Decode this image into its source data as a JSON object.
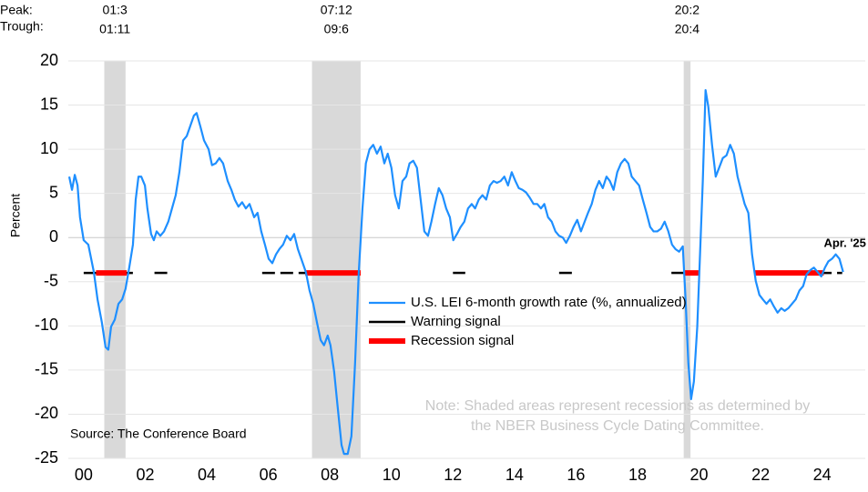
{
  "chart_data": {
    "type": "line",
    "y_label": "Percent",
    "peak_label": "Peak:",
    "trough_label": "Trough:",
    "x": [
      2000.03,
      2000.12,
      2000.21,
      2000.3,
      2000.38,
      2000.5,
      2000.65,
      2000.83,
      2000.95,
      2001.09,
      2001.21,
      2001.3,
      2001.39,
      2001.51,
      2001.63,
      2001.75,
      2001.86,
      2001.98,
      2002.1,
      2002.19,
      2002.28,
      2002.37,
      2002.49,
      2002.57,
      2002.69,
      2002.78,
      2002.87,
      2002.99,
      2003.11,
      2003.25,
      2003.37,
      2003.49,
      2003.61,
      2003.73,
      2003.85,
      2003.96,
      2004.08,
      2004.17,
      2004.29,
      2004.41,
      2004.56,
      2004.67,
      2004.79,
      2004.91,
      2005.03,
      2005.18,
      2005.3,
      2005.41,
      2005.53,
      2005.65,
      2005.77,
      2005.89,
      2006.04,
      2006.15,
      2006.27,
      2006.39,
      2006.51,
      2006.63,
      2006.75,
      2006.86,
      2006.98,
      2007.1,
      2007.22,
      2007.34,
      2007.46,
      2007.57,
      2007.72,
      2007.84,
      2007.96,
      2008.08,
      2008.2,
      2008.31,
      2008.43,
      2008.52,
      2008.64,
      2008.76,
      2008.88,
      2008.96,
      2009.08,
      2009.2,
      2009.32,
      2009.44,
      2009.56,
      2009.67,
      2009.79,
      2009.91,
      2010.03,
      2010.15,
      2010.27,
      2010.38,
      2010.5,
      2010.62,
      2010.74,
      2010.86,
      2010.98,
      2011.09,
      2011.21,
      2011.33,
      2011.45,
      2011.57,
      2011.69,
      2011.8,
      2011.92,
      2012.04,
      2012.16,
      2012.28,
      2012.4,
      2012.51,
      2012.63,
      2012.75,
      2012.87,
      2012.99,
      2013.11,
      2013.22,
      2013.34,
      2013.46,
      2013.58,
      2013.7,
      2013.82,
      2013.93,
      2014.05,
      2014.17,
      2014.29,
      2014.41,
      2014.53,
      2014.64,
      2014.76,
      2014.88,
      2015.0,
      2015.12,
      2015.24,
      2015.36,
      2015.47,
      2015.59,
      2015.71,
      2015.83,
      2015.95,
      2016.07,
      2016.18,
      2016.3,
      2016.42,
      2016.54,
      2016.66,
      2016.78,
      2016.89,
      2017.01,
      2017.13,
      2017.25,
      2017.37,
      2017.49,
      2017.6,
      2017.72,
      2017.84,
      2017.96,
      2018.08,
      2018.2,
      2018.31,
      2018.43,
      2018.55,
      2018.67,
      2018.79,
      2018.91,
      2019.02,
      2019.14,
      2019.26,
      2019.38,
      2019.5,
      2019.62,
      2019.73,
      2019.85,
      2019.97,
      2020.06,
      2020.15,
      2020.24,
      2020.33,
      2020.44,
      2020.53,
      2020.62,
      2020.71,
      2020.8,
      2020.92,
      2021.04,
      2021.15,
      2021.27,
      2021.39,
      2021.51,
      2021.63,
      2021.75,
      2021.86,
      2021.98,
      2022.1,
      2022.22,
      2022.34,
      2022.46,
      2022.57,
      2022.69,
      2022.81,
      2022.93,
      2023.05,
      2023.17,
      2023.28,
      2023.4,
      2023.52,
      2023.64,
      2023.76,
      2023.88,
      2023.99,
      2024.11,
      2024.23,
      2024.35,
      2024.47,
      2024.59,
      2024.7,
      2024.82,
      2024.94,
      2025.06,
      2025.18
    ],
    "series": [
      {
        "name": "U.S. LEI 6-month growth rate (%, annualized)",
        "color": "#1e8fff",
        "values": [
          6.9,
          5.4,
          7.1,
          5.9,
          2.3,
          -0.3,
          -0.8,
          -3.9,
          -7,
          -9.6,
          -12.4,
          -12.7,
          -10.1,
          -9.3,
          -7.5,
          -7,
          -5.8,
          -3.4,
          -0.8,
          4.3,
          6.9,
          6.9,
          5.9,
          3.3,
          0.4,
          -0.3,
          0.7,
          0.2,
          0.7,
          1.8,
          3.3,
          4.8,
          7.4,
          11,
          11.5,
          12.6,
          13.8,
          14.1,
          12.6,
          11,
          10,
          8.2,
          8.4,
          9,
          8.4,
          6.4,
          5.4,
          4.3,
          3.5,
          4,
          3.3,
          3.8,
          2.3,
          2.8,
          0.7,
          -0.8,
          -2.4,
          -2.9,
          -1.9,
          -1.3,
          -0.8,
          0.2,
          -0.3,
          0.4,
          -1.3,
          -2.4,
          -3.9,
          -6,
          -7.5,
          -9.6,
          -11.6,
          -12.2,
          -11.1,
          -12.2,
          -15.2,
          -19.4,
          -23.5,
          -24.5,
          -24.5,
          -22.5,
          -14.2,
          -3.9,
          3.3,
          8.4,
          10,
          10.5,
          9.5,
          10.3,
          8.4,
          9.5,
          7.9,
          4.8,
          3.3,
          6.4,
          6.9,
          8.4,
          8.7,
          7.9,
          4.3,
          0.7,
          0.2,
          1.8,
          3.8,
          5.6,
          4.8,
          3.3,
          2.3,
          -0.3,
          0.4,
          1.2,
          1.8,
          3.3,
          3.8,
          3.3,
          4.3,
          4.8,
          4.3,
          5.9,
          6.4,
          6.2,
          6.4,
          6.9,
          5.9,
          7.4,
          6.4,
          5.6,
          5.4,
          5.1,
          4.5,
          3.8,
          3.8,
          3.3,
          3.8,
          2.3,
          1.8,
          0.7,
          0.2,
          0,
          -0.6,
          0.2,
          1.2,
          2,
          0.7,
          1.8,
          2.8,
          3.8,
          5.4,
          6.4,
          5.6,
          6.9,
          6.4,
          5.4,
          7.4,
          8.4,
          8.9,
          8.4,
          6.9,
          6.4,
          5.9,
          4.3,
          2.8,
          1.2,
          0.7,
          0.7,
          1,
          1.8,
          0.7,
          -0.8,
          -1.3,
          -1.6,
          -1,
          -7,
          -14.2,
          -18.3,
          -16.3,
          -10.1,
          -1.9,
          6.4,
          16.7,
          14.8,
          10.5,
          6.9,
          7.9,
          9,
          9.3,
          10.5,
          9.5,
          6.9,
          5.4,
          3.8,
          2.8,
          -1.9,
          -4.9,
          -6.5,
          -7,
          -7.5,
          -7,
          -7.8,
          -8.5,
          -8,
          -8.3,
          -8,
          -7.5,
          -7,
          -6,
          -5.5,
          -4.2,
          -3.7,
          -3.4,
          -3.9,
          -4.4,
          -3.4,
          -2.7,
          -2.4,
          -1.9,
          -2.4,
          -3.9
        ]
      }
    ],
    "signals": [
      {
        "name": "Warning signal",
        "color": "#000000",
        "level": -4,
        "intervals": [
          [
            2000.5,
            2002.1
          ],
          [
            2002.8,
            2003.25
          ],
          [
            2006.3,
            2007.7
          ],
          [
            2012.5,
            2012.9
          ],
          [
            2015.95,
            2016.4
          ],
          [
            2019.6,
            2020.0
          ],
          [
            2023.8,
            2025.15
          ]
        ]
      },
      {
        "name": "Recession signal",
        "color": "#ff0000",
        "level": -4,
        "intervals": [
          [
            2000.9,
            2001.9
          ],
          [
            2007.7,
            2009.5
          ],
          [
            2020.0,
            2020.5
          ],
          [
            2022.3,
            2024.55
          ]
        ]
      }
    ],
    "recessions": [
      {
        "peak": "01:3",
        "trough": "01:11",
        "start": 2001.17,
        "end": 2001.86
      },
      {
        "peak": "07:12",
        "trough": "09:6",
        "start": 2007.92,
        "end": 2009.5
      },
      {
        "peak": "20:2",
        "trough": "20:4",
        "start": 2020.0,
        "end": 2020.22
      }
    ],
    "annotation": "Apr. '25",
    "source": "Source: The Conference Board",
    "note": [
      "Note: Shaded areas represent recessions as determined by",
      "the NBER Business Cycle Dating Committee."
    ],
    "xlim": [
      2000,
      2025.9
    ],
    "ylim": [
      -25,
      20
    ],
    "yticks": [
      -25,
      -20,
      -15,
      -10,
      -5,
      0,
      5,
      10,
      15,
      20
    ],
    "xticks": [
      {
        "value": 2000.5,
        "label": "00"
      },
      {
        "value": 2002.5,
        "label": "02"
      },
      {
        "value": 2004.5,
        "label": "04"
      },
      {
        "value": 2006.5,
        "label": "06"
      },
      {
        "value": 2008.5,
        "label": "08"
      },
      {
        "value": 2010.5,
        "label": "10"
      },
      {
        "value": 2012.5,
        "label": "12"
      },
      {
        "value": 2014.5,
        "label": "14"
      },
      {
        "value": 2016.5,
        "label": "16"
      },
      {
        "value": 2018.5,
        "label": "18"
      },
      {
        "value": 2020.5,
        "label": "20"
      },
      {
        "value": 2022.5,
        "label": "22"
      },
      {
        "value": 2024.5,
        "label": "24"
      }
    ],
    "grid": true
  }
}
